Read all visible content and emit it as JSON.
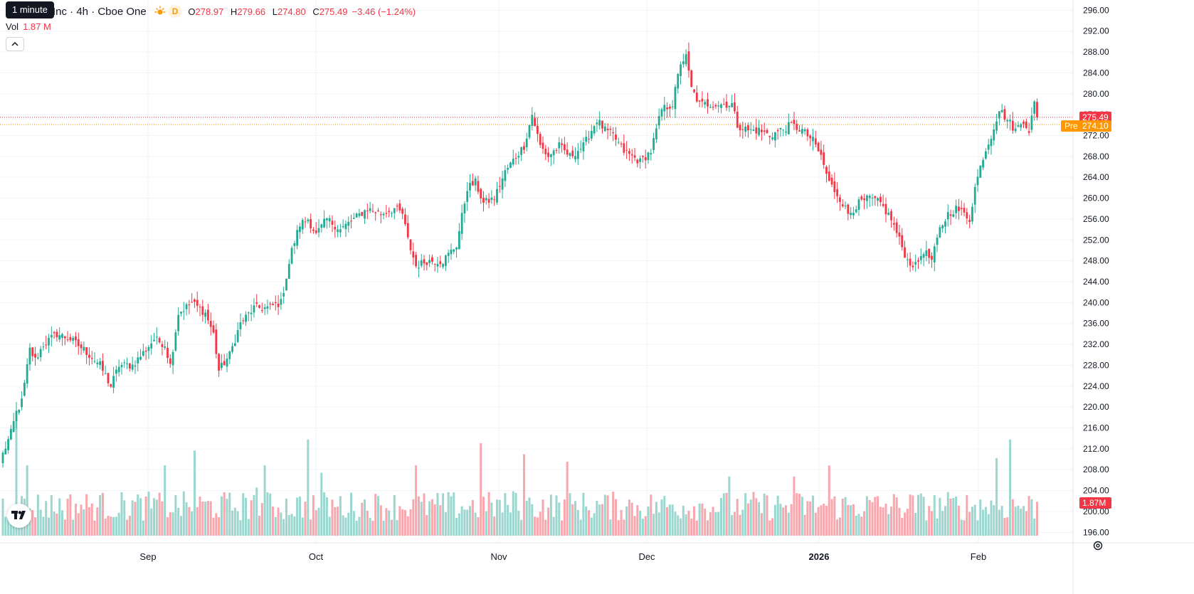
{
  "header": {
    "title_visible": "Inc · 4h · Cboe One",
    "session_badge": "D",
    "ohlc": {
      "o_label": "O",
      "o": "278.97",
      "h_label": "H",
      "h": "279.66",
      "l_label": "L",
      "l": "274.80",
      "c_label": "C",
      "c": "275.49"
    },
    "change": "−3.46 (−1.24%)",
    "tooltip": "1 minute"
  },
  "volume_legend": {
    "label": "Vol",
    "value": "1.87 M"
  },
  "colors": {
    "up": "#22ab94",
    "down": "#f23645",
    "vol_up": "#9bd6cf",
    "vol_down": "#f7a7ad",
    "pre": "#ff9800",
    "grid": "#f0f3fa"
  },
  "icons": {
    "sun": "sun-icon",
    "collapse": "chevron-up-icon",
    "logo": "tradingview-logo-icon",
    "settings": "gear-icon"
  },
  "chart_data": {
    "type": "candlestick",
    "y_axis": {
      "min": 194,
      "max": 297,
      "ticks": [
        "296.00",
        "292.00",
        "288.00",
        "284.00",
        "280.00",
        "276.00",
        "272.00",
        "268.00",
        "264.00",
        "260.00",
        "256.00",
        "252.00",
        "248.00",
        "244.00",
        "240.00",
        "236.00",
        "232.00",
        "228.00",
        "224.00",
        "220.00",
        "216.00",
        "212.00",
        "208.00",
        "204.00",
        "200.00",
        "196.00"
      ]
    },
    "x_axis": {
      "labels": [
        "Sep",
        "Oct",
        "Nov",
        "Dec",
        "2026",
        "Feb"
      ]
    },
    "price_labels": {
      "last": "275.49",
      "pre_label": "Pre",
      "pre": "274.10",
      "volume": "1.87M"
    },
    "last_price": 275.49,
    "pre_price": 274.1,
    "price_anchors": [
      [
        0,
        211
      ],
      [
        3,
        215
      ],
      [
        5,
        219
      ],
      [
        7,
        221
      ],
      [
        10,
        231
      ],
      [
        12,
        229
      ],
      [
        15,
        232
      ],
      [
        20,
        234
      ],
      [
        25,
        233
      ],
      [
        30,
        231
      ],
      [
        36,
        228
      ],
      [
        40,
        224
      ],
      [
        43,
        228
      ],
      [
        48,
        228
      ],
      [
        53,
        231
      ],
      [
        56,
        233
      ],
      [
        60,
        232
      ],
      [
        62,
        228
      ],
      [
        65,
        238
      ],
      [
        70,
        240
      ],
      [
        75,
        238
      ],
      [
        78,
        234
      ],
      [
        80,
        227
      ],
      [
        84,
        230
      ],
      [
        88,
        236
      ],
      [
        93,
        239
      ],
      [
        98,
        239
      ],
      [
        103,
        240
      ],
      [
        107,
        250
      ],
      [
        110,
        255
      ],
      [
        113,
        256
      ],
      [
        116,
        253
      ],
      [
        120,
        256
      ],
      [
        125,
        254
      ],
      [
        130,
        256
      ],
      [
        135,
        258
      ],
      [
        140,
        257
      ],
      [
        145,
        258
      ],
      [
        148,
        257
      ],
      [
        150,
        252
      ],
      [
        153,
        247
      ],
      [
        157,
        248
      ],
      [
        160,
        248
      ],
      [
        163,
        248
      ],
      [
        168,
        251
      ],
      [
        172,
        262
      ],
      [
        175,
        263
      ],
      [
        178,
        259
      ],
      [
        182,
        260
      ],
      [
        186,
        265
      ],
      [
        190,
        268
      ],
      [
        193,
        270
      ],
      [
        196,
        276
      ],
      [
        199,
        270
      ],
      [
        202,
        268
      ],
      [
        206,
        270
      ],
      [
        210,
        268
      ],
      [
        215,
        270
      ],
      [
        220,
        275
      ],
      [
        223,
        273
      ],
      [
        226,
        272
      ],
      [
        230,
        269
      ],
      [
        233,
        268
      ],
      [
        236,
        267
      ],
      [
        240,
        269
      ],
      [
        244,
        277
      ],
      [
        248,
        278
      ],
      [
        251,
        286
      ],
      [
        253,
        287
      ],
      [
        255,
        281
      ],
      [
        258,
        278
      ],
      [
        262,
        278
      ],
      [
        266,
        278
      ],
      [
        270,
        278
      ],
      [
        272,
        274
      ],
      [
        276,
        273
      ],
      [
        280,
        273
      ],
      [
        284,
        272
      ],
      [
        288,
        273
      ],
      [
        292,
        274
      ],
      [
        296,
        273
      ],
      [
        300,
        271
      ],
      [
        303,
        268
      ],
      [
        306,
        263
      ],
      [
        310,
        260
      ],
      [
        313,
        257
      ],
      [
        317,
        259
      ],
      [
        321,
        260
      ],
      [
        325,
        259
      ],
      [
        329,
        256
      ],
      [
        332,
        252
      ],
      [
        335,
        248
      ],
      [
        338,
        247
      ],
      [
        341,
        250
      ],
      [
        344,
        248
      ],
      [
        347,
        254
      ],
      [
        350,
        257
      ],
      [
        353,
        258
      ],
      [
        356,
        257
      ],
      [
        358,
        256
      ],
      [
        360,
        262
      ],
      [
        363,
        268
      ],
      [
        366,
        272
      ],
      [
        369,
        277
      ],
      [
        372,
        275
      ],
      [
        375,
        273
      ],
      [
        378,
        275
      ],
      [
        380,
        273
      ],
      [
        382,
        278
      ],
      [
        383,
        275
      ]
    ],
    "volume_range": {
      "min": 0,
      "max": 4.0,
      "unit": "M"
    },
    "volume_spikes": [
      [
        5,
        3.1
      ],
      [
        9,
        1.9
      ],
      [
        60,
        1.9
      ],
      [
        71,
        2.3
      ],
      [
        93,
        1.1
      ],
      [
        94,
        1.3
      ],
      [
        97,
        1.9
      ],
      [
        113,
        2.6
      ],
      [
        118,
        1.7
      ],
      [
        153,
        1.9
      ],
      [
        177,
        2.5
      ],
      [
        189,
        1.2
      ],
      [
        193,
        2.2
      ],
      [
        209,
        2.0
      ],
      [
        269,
        1.6
      ],
      [
        293,
        1.6
      ],
      [
        306,
        1.9
      ],
      [
        368,
        2.1
      ],
      [
        373,
        2.6
      ],
      [
        385,
        1.5
      ]
    ]
  }
}
